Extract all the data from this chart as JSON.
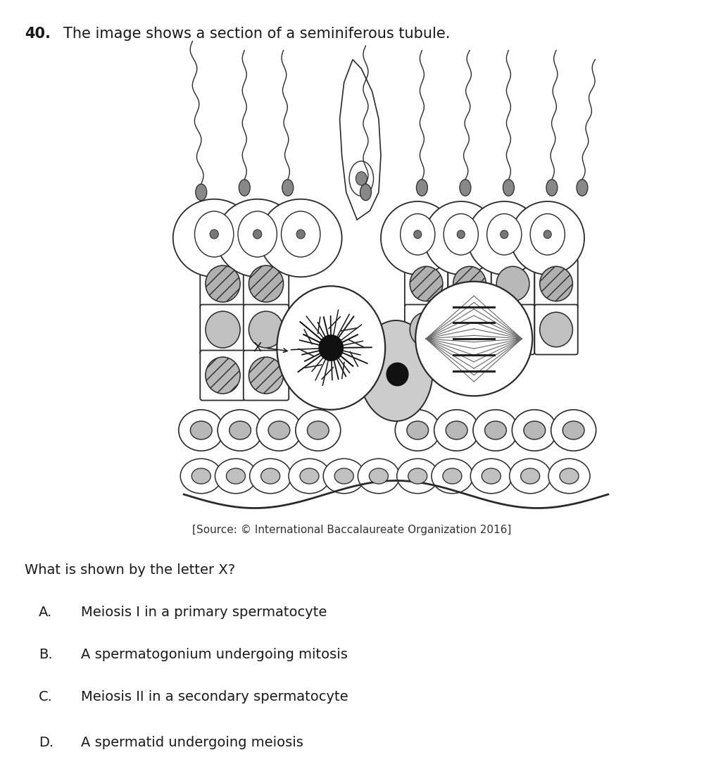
{
  "question_number": "40.",
  "question_text": "The image shows a section of a seminiferous tubule.",
  "source_text": "[Source: © International Baccalaureate Organization 2016]",
  "question_prompt": "What is shown by the letter X?",
  "options": [
    {
      "letter": "A.",
      "text": "Meiosis I in a primary spermatocyte"
    },
    {
      "letter": "B.",
      "text": "A spermatogonium undergoing mitosis"
    },
    {
      "letter": "C.",
      "text": "Meiosis II in a secondary spermatocyte"
    },
    {
      "letter": "D.",
      "text": "A spermatid undergoing meiosis"
    }
  ],
  "bg_color": "#ffffff",
  "text_color": "#1a1a1a",
  "line_color": "#2a2a2a",
  "title_fontsize": 15,
  "body_fontsize": 14,
  "source_fontsize": 11
}
